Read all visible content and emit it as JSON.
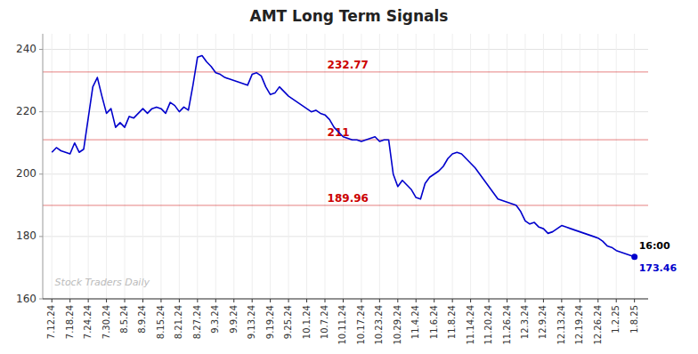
{
  "chart_data": {
    "type": "line",
    "title": "AMT Long Term Signals",
    "color": "#0000cc",
    "grid": true,
    "ylim": [
      160,
      245
    ],
    "yticks": [
      160,
      180,
      200,
      220,
      240
    ],
    "reference_lines": [
      {
        "value": 232.77,
        "label": "232.77",
        "color": "#cc0000"
      },
      {
        "value": 211.0,
        "label": "211",
        "color": "#cc0000"
      },
      {
        "value": 189.96,
        "label": "189.96",
        "color": "#cc0000"
      }
    ],
    "watermark": "Stock Traders Daily",
    "annotations": [
      "16:00"
    ],
    "categories": [
      "7.12.24",
      null,
      null,
      null,
      "7.18.24",
      null,
      null,
      null,
      "7.24.24",
      null,
      null,
      null,
      "7.30.24",
      null,
      null,
      null,
      "8.5.24",
      null,
      null,
      null,
      "8.9.24",
      null,
      null,
      null,
      "8.15.24",
      null,
      null,
      null,
      "8.21.24",
      null,
      null,
      null,
      "8.27.24",
      null,
      null,
      null,
      "9.3.24",
      null,
      null,
      null,
      "9.9.24",
      null,
      null,
      null,
      "9.13.24",
      null,
      null,
      null,
      "9.19.24",
      null,
      null,
      null,
      "9.25.24",
      null,
      null,
      null,
      "10.1.24",
      null,
      null,
      null,
      "10.7.24",
      null,
      null,
      null,
      "10.11.24",
      null,
      null,
      null,
      "10.17.24",
      null,
      null,
      null,
      "10.23.24",
      null,
      null,
      null,
      "10.29.24",
      null,
      null,
      null,
      "11.4.24",
      null,
      null,
      null,
      "11.6.24",
      null,
      null,
      null,
      "11.8.24",
      null,
      null,
      null,
      "11.14.24",
      null,
      null,
      null,
      "11.20.24",
      null,
      null,
      null,
      "11.26.24",
      null,
      null,
      null,
      "12.3.24",
      null,
      null,
      null,
      "12.9.24",
      null,
      null,
      null,
      "12.13.24",
      null,
      null,
      null,
      "12.19.24",
      null,
      null,
      null,
      "12.26.24",
      null,
      null,
      null,
      "1.2.25",
      null,
      null,
      null,
      "1.8.25"
    ],
    "values": [
      207.0,
      208.5,
      207.5,
      207.0,
      206.5,
      210.0,
      207.0,
      208.0,
      218.0,
      228.0,
      231.0,
      225.0,
      219.5,
      221.0,
      215.0,
      216.5,
      215.0,
      218.5,
      218.0,
      219.5,
      221.0,
      219.5,
      221.0,
      221.5,
      221.0,
      219.5,
      223.0,
      222.0,
      220.0,
      221.5,
      220.5,
      228.5,
      237.5,
      238.0,
      236.0,
      234.5,
      232.5,
      232.0,
      231.0,
      230.5,
      230.0,
      229.5,
      229.0,
      228.5,
      232.0,
      232.5,
      231.5,
      228.0,
      225.5,
      226.0,
      228.0,
      226.5,
      225.0,
      224.0,
      223.0,
      222.0,
      221.0,
      220.0,
      220.5,
      219.5,
      219.0,
      217.5,
      215.0,
      213.5,
      212.0,
      211.5,
      211.0,
      211.0,
      210.5,
      211.0,
      211.5,
      212.0,
      210.5,
      211.0,
      211.0,
      200.0,
      196.0,
      198.0,
      196.5,
      195.0,
      192.5,
      192.0,
      197.0,
      199.0,
      200.0,
      201.0,
      202.5,
      205.0,
      206.5,
      207.0,
      206.5,
      205.0,
      203.5,
      202.0,
      200.0,
      198.0,
      196.0,
      194.0,
      192.0,
      191.5,
      191.0,
      190.5,
      190.0,
      188.0,
      185.0,
      184.0,
      184.5,
      183.0,
      182.5,
      181.0,
      181.5,
      182.5,
      183.5,
      183.0,
      182.5,
      182.0,
      181.5,
      181.0,
      180.5,
      180.0,
      179.5,
      178.5,
      177.0,
      176.5,
      175.5,
      175.0,
      174.5,
      174.0,
      173.46
    ]
  }
}
